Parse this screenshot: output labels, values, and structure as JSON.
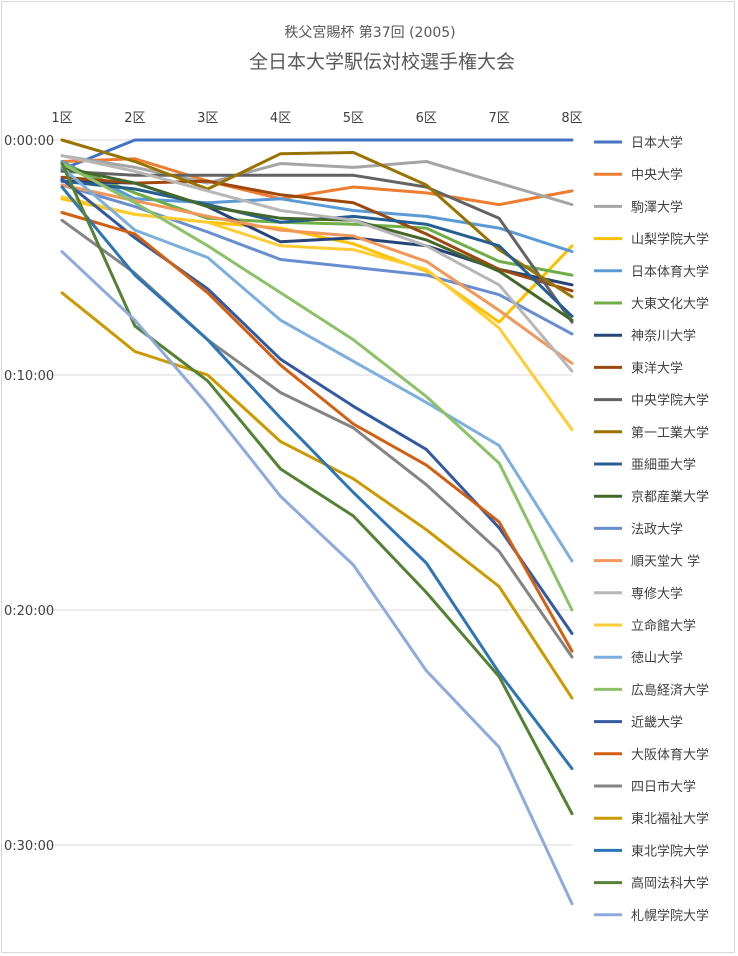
{
  "chart_data": {
    "type": "line",
    "title": "全日本大学駅伝対校選手権大会",
    "subtitle": "秩父宮賜杯 第37回 (2005)",
    "categories": [
      "1区",
      "2区",
      "3区",
      "4区",
      "5区",
      "6区",
      "7区",
      "8区"
    ],
    "y_ticks": [
      "0:00:00",
      "0:10:00",
      "0:20:00",
      "0:30:00"
    ],
    "ylim_seconds": [
      0,
      1980
    ],
    "y_inverted": true,
    "grid": true,
    "legend_position": "right",
    "series": [
      {
        "name": "日本大学",
        "color": "#4472C4",
        "values": [
          75,
          0,
          0,
          0,
          0,
          0,
          0,
          0
        ]
      },
      {
        "name": "中央大学",
        "color": "#ED7D31",
        "values": [
          55,
          48,
          105,
          150,
          120,
          135,
          165,
          130
        ]
      },
      {
        "name": "駒澤大学",
        "color": "#A5A5A5",
        "values": [
          40,
          70,
          110,
          60,
          70,
          55,
          110,
          165
        ]
      },
      {
        "name": "山梨学院大学",
        "color": "#FFC000",
        "values": [
          150,
          190,
          210,
          225,
          265,
          335,
          465,
          270
        ]
      },
      {
        "name": "日本体育大学",
        "color": "#5B9BD5",
        "values": [
          55,
          150,
          160,
          150,
          180,
          195,
          225,
          285
        ]
      },
      {
        "name": "大東文化大学",
        "color": "#70AD47",
        "values": [
          60,
          135,
          200,
          210,
          215,
          225,
          310,
          345
        ]
      },
      {
        "name": "神奈川大学",
        "color": "#264478",
        "values": [
          105,
          110,
          170,
          260,
          250,
          270,
          330,
          370
        ]
      },
      {
        "name": "東洋大学",
        "color": "#9E480E",
        "values": [
          95,
          110,
          105,
          140,
          160,
          240,
          330,
          385
        ]
      },
      {
        "name": "中央学院大学",
        "color": "#636363",
        "values": [
          80,
          90,
          90,
          90,
          90,
          120,
          200,
          465
        ]
      },
      {
        "name": "第一工業大学",
        "color": "#997300",
        "values": [
          0,
          55,
          125,
          35,
          32,
          115,
          280,
          400
        ]
      },
      {
        "name": "亜細亜大学",
        "color": "#255E91",
        "values": [
          105,
          125,
          165,
          210,
          195,
          215,
          270,
          450
        ]
      },
      {
        "name": "京都産業大学",
        "color": "#43682B",
        "values": [
          70,
          110,
          170,
          200,
          205,
          255,
          335,
          460
        ]
      },
      {
        "name": "法政大学",
        "color": "#698ED0",
        "values": [
          115,
          170,
          235,
          305,
          325,
          345,
          395,
          495
        ]
      },
      {
        "name": "順天堂大 学",
        "color": "#F1975A",
        "values": [
          115,
          155,
          195,
          230,
          245,
          310,
          435,
          570
        ]
      },
      {
        "name": "専修大学",
        "color": "#B7B7B7",
        "values": [
          40,
          80,
          130,
          180,
          205,
          270,
          370,
          590
        ]
      },
      {
        "name": "立命館大学",
        "color": "#FFCD33",
        "values": [
          145,
          190,
          210,
          270,
          280,
          330,
          480,
          740
        ]
      },
      {
        "name": "徳山大学",
        "color": "#7CAFDD",
        "values": [
          70,
          230,
          300,
          460,
          565,
          670,
          780,
          1075
        ]
      },
      {
        "name": "広島経済大学",
        "color": "#8CC168",
        "values": [
          60,
          160,
          270,
          390,
          510,
          655,
          825,
          1200
        ]
      },
      {
        "name": "近畿大学",
        "color": "#335AA1",
        "values": [
          100,
          250,
          380,
          560,
          680,
          790,
          990,
          1260
        ]
      },
      {
        "name": "大阪体育大学",
        "color": "#D26012",
        "values": [
          185,
          240,
          390,
          575,
          725,
          830,
          975,
          1305
        ]
      },
      {
        "name": "四日市大学",
        "color": "#848484",
        "values": [
          205,
          340,
          510,
          645,
          735,
          880,
          1050,
          1320
        ]
      },
      {
        "name": "東北福祉大学",
        "color": "#CC9A00",
        "values": [
          390,
          540,
          600,
          770,
          865,
          995,
          1140,
          1425
        ]
      },
      {
        "name": "東北学院大学",
        "color": "#2E75B6",
        "values": [
          120,
          345,
          510,
          710,
          900,
          1080,
          1360,
          1605
        ]
      },
      {
        "name": "高岡法科大学",
        "color": "#548235",
        "values": [
          60,
          475,
          615,
          840,
          960,
          1155,
          1370,
          1720
        ]
      },
      {
        "name": "札幌学院大学",
        "color": "#8FAADC",
        "values": [
          285,
          460,
          675,
          910,
          1085,
          1355,
          1550,
          1950
        ]
      }
    ]
  }
}
